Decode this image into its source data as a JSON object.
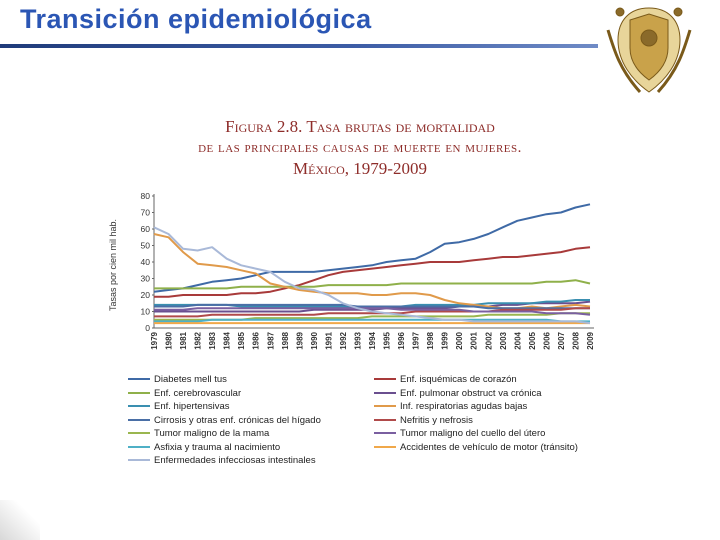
{
  "slide": {
    "title": "Transición epidemiológica"
  },
  "figure": {
    "title_line1": "Figura 2.8. Tasa brutas de mortalidad",
    "title_line2": "de las principales causas de muerte en mujeres.",
    "title_line3": "México, 1979-2009"
  },
  "chart_data": {
    "type": "line",
    "ylabel": "Tasas por cien mil hab.",
    "ylim": [
      0,
      80
    ],
    "yticks": [
      "0",
      "10",
      "20",
      "30",
      "40",
      "50",
      "60",
      "70",
      "80"
    ],
    "x": [
      "1979",
      "1980",
      "1981",
      "1982",
      "1983",
      "1984",
      "1985",
      "1986",
      "1987",
      "1988",
      "1989",
      "1990",
      "1991",
      "1992",
      "1993",
      "1994",
      "1995",
      "1996",
      "1997",
      "1998",
      "1999",
      "2000",
      "2001",
      "2002",
      "2003",
      "2004",
      "2005",
      "2006",
      "2007",
      "2008",
      "2009"
    ],
    "grid": false,
    "legend_position": "bottom",
    "series": [
      {
        "name": "Diabetes mell tus",
        "color": "#3f6aa6",
        "values": [
          22,
          23,
          24,
          26,
          28,
          29,
          30,
          32,
          34,
          34,
          34,
          34,
          35,
          36,
          37,
          38,
          40,
          41,
          42,
          46,
          51,
          52,
          54,
          57,
          61,
          65,
          67,
          69,
          70,
          73,
          75
        ]
      },
      {
        "name": "Enf. isquémicas de corazón",
        "color": "#a83a3a",
        "values": [
          19,
          19,
          20,
          20,
          20,
          20,
          21,
          21,
          22,
          24,
          26,
          29,
          32,
          34,
          35,
          36,
          37,
          38,
          39,
          40,
          40,
          40,
          41,
          42,
          43,
          43,
          44,
          45,
          46,
          48,
          49
        ]
      },
      {
        "name": "Enf. cerebrovascular",
        "color": "#8fb04a",
        "values": [
          24,
          24,
          24,
          24,
          24,
          24,
          25,
          25,
          25,
          25,
          25,
          25,
          26,
          26,
          26,
          26,
          26,
          27,
          27,
          27,
          27,
          27,
          27,
          27,
          27,
          27,
          27,
          28,
          28,
          29,
          27
        ]
      },
      {
        "name": "Enf. pulmonar obstruct va crónica",
        "color": "#6a4f8f",
        "values": [
          10,
          10,
          10,
          10,
          10,
          10,
          10,
          10,
          10,
          10,
          10,
          11,
          11,
          11,
          11,
          11,
          12,
          12,
          12,
          12,
          12,
          13,
          13,
          13,
          14,
          14,
          15,
          15,
          15,
          15,
          16
        ]
      },
      {
        "name": "Enf. hipertensivas",
        "color": "#3a8fb0",
        "values": [
          14,
          14,
          14,
          14,
          14,
          14,
          13,
          13,
          13,
          13,
          13,
          13,
          13,
          13,
          13,
          13,
          13,
          13,
          14,
          14,
          14,
          14,
          14,
          15,
          15,
          15,
          15,
          16,
          16,
          17,
          17
        ]
      },
      {
        "name": "Inf. respiratorias agudas bajas",
        "color": "#e09a4a",
        "values": [
          57,
          55,
          46,
          39,
          38,
          37,
          35,
          33,
          27,
          25,
          23,
          22,
          21,
          21,
          21,
          20,
          20,
          21,
          21,
          20,
          17,
          15,
          14,
          13,
          12,
          12,
          13,
          12,
          13,
          14,
          13
        ]
      },
      {
        "name": "Cirrosis y otras enf. crónicas del hígado",
        "color": "#4a6fa6",
        "values": [
          13,
          13,
          13,
          14,
          14,
          14,
          14,
          14,
          14,
          14,
          14,
          14,
          14,
          14,
          13,
          13,
          13,
          13,
          13,
          13,
          13,
          13,
          13,
          12,
          12,
          12,
          12,
          12,
          12,
          12,
          12
        ]
      },
      {
        "name": "Nefritis y nefrosis",
        "color": "#b04a4a",
        "values": [
          7,
          7,
          7,
          7,
          8,
          8,
          8,
          8,
          8,
          8,
          8,
          8,
          9,
          9,
          9,
          9,
          9,
          9,
          10,
          10,
          10,
          10,
          10,
          10,
          11,
          11,
          11,
          11,
          11,
          12,
          12
        ]
      },
      {
        "name": "Tumor maligno de la mama",
        "color": "#9ab64f",
        "values": [
          5,
          5,
          5,
          5,
          5,
          5,
          5,
          6,
          6,
          6,
          6,
          6,
          6,
          6,
          6,
          7,
          7,
          7,
          7,
          7,
          7,
          7,
          7,
          8,
          8,
          8,
          8,
          8,
          9,
          9,
          9
        ]
      },
      {
        "name": "Tumor maligno del cuello del útero",
        "color": "#7a5fa0",
        "values": [
          11,
          11,
          11,
          12,
          12,
          12,
          12,
          12,
          12,
          12,
          12,
          12,
          12,
          12,
          12,
          12,
          12,
          11,
          11,
          11,
          11,
          11,
          10,
          10,
          10,
          10,
          10,
          9,
          9,
          9,
          8
        ]
      },
      {
        "name": "Asfixia y trauma al nacimiento",
        "color": "#4fb0c6",
        "values": [
          4,
          4,
          4,
          4,
          5,
          5,
          5,
          5,
          5,
          5,
          5,
          5,
          5,
          5,
          5,
          5,
          5,
          5,
          5,
          5,
          5,
          5,
          5,
          5,
          5,
          5,
          5,
          5,
          4,
          4,
          4
        ]
      },
      {
        "name": "Accidentes de vehículo de motor (tránsito)",
        "color": "#f0a84a",
        "values": [
          3,
          3,
          3,
          3,
          3,
          3,
          3,
          3,
          3,
          3,
          3,
          3,
          3,
          3,
          3,
          3,
          3,
          3,
          3,
          3,
          3,
          3,
          3,
          3,
          3,
          3,
          3,
          3,
          3,
          3,
          3
        ]
      },
      {
        "name": "Enfermedades infecciosas intestinales",
        "color": "#a9b9d8",
        "values": [
          61,
          57,
          48,
          47,
          49,
          42,
          38,
          36,
          34,
          28,
          24,
          23,
          20,
          15,
          12,
          10,
          9,
          8,
          7,
          6,
          5,
          5,
          4,
          4,
          4,
          4,
          4,
          4,
          4,
          4,
          3
        ]
      }
    ]
  }
}
